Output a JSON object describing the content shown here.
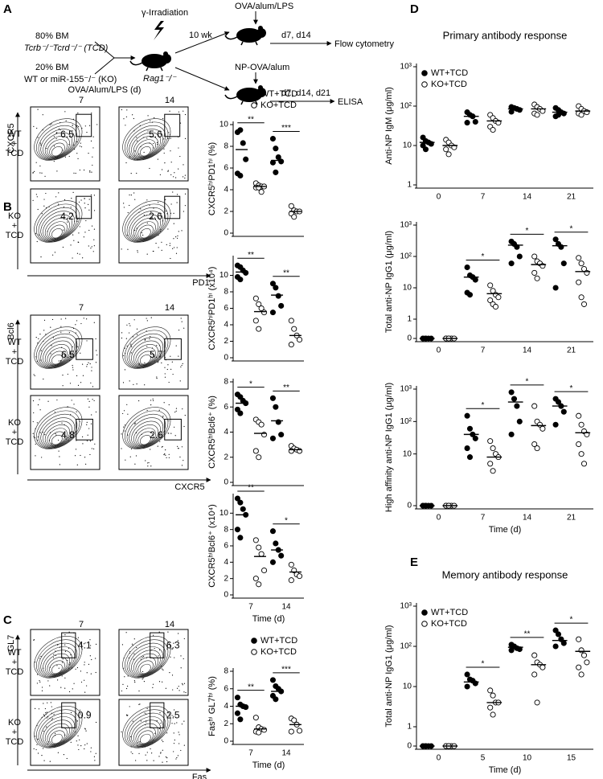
{
  "panel_labels": [
    "A",
    "B",
    "C",
    "D",
    "E"
  ],
  "schematic": {
    "bm_tcd_pct": "80% BM",
    "bm_tcd": "Tcrb⁻/⁻Tcrd⁻/⁻ (TCD)",
    "bm_test_pct": "20% BM",
    "bm_test": "WT or miR-155⁻/⁻ (KO)",
    "irradiation": "γ-Irradiation",
    "wait": "10 wk",
    "recipient": "Rag1⁻/⁻",
    "immunization_1": "OVA/alum/LPS",
    "days_1": "d7, d14",
    "readout_1": "Flow cytometry",
    "immunization_2": "NP-OVA/alum",
    "days_2": "d7, d14, d21",
    "readout_2": "ELISA"
  },
  "flow": {
    "title": "OVA/Alum/LPS (d)",
    "blocks": [
      {
        "days": [
          "7",
          "14"
        ],
        "y_axis": "CXCR5",
        "x_axis": "PD1",
        "rows": [
          {
            "label": [
              "WT",
              "+",
              "TCD"
            ],
            "gates": [
              6.5,
              5.6
            ]
          },
          {
            "label": [
              "KO",
              "+",
              "TCD"
            ],
            "gates": [
              4.2,
              2.6
            ]
          }
        ]
      },
      {
        "days": [
          "7",
          "14"
        ],
        "y_axis": "Bcl6",
        "x_axis": "CXCR5",
        "rows": [
          {
            "label": [
              "WT",
              "+",
              "TCD"
            ],
            "gates": [
              6.5,
              5.7
            ]
          },
          {
            "label": [
              "KO",
              "+",
              "TCD"
            ],
            "gates": [
              4.8,
              2.6
            ]
          }
        ]
      },
      {
        "days": [
          "7",
          "14"
        ],
        "y_axis": "GL7",
        "x_axis": "Fas",
        "rows": [
          {
            "label": [
              "WT",
              "+",
              "TCD"
            ],
            "gates": [
              4.1,
              6.3
            ]
          },
          {
            "label": [
              "KO",
              "+",
              "TCD"
            ],
            "gates": [
              0.9,
              2.5
            ]
          }
        ]
      }
    ]
  },
  "chart_data": [
    {
      "type": "dot",
      "ylabel": "CXCR5ʰⁱPD1ʰⁱ (%)",
      "categories": [
        null,
        null
      ],
      "ylim": [
        0,
        10
      ],
      "yticks": [
        0,
        2,
        4,
        6,
        8,
        10
      ],
      "legend": "upper right",
      "significance": [
        "**",
        "***"
      ],
      "series": [
        {
          "name": "WT+TCD",
          "color": "#000000",
          "marker": "filled",
          "values": [
            [
              9.3,
              9.5,
              8.3,
              6.8,
              5.5,
              5.3
            ],
            [
              8.7,
              7.8,
              7.0,
              6.6,
              6.5,
              5.6
            ]
          ],
          "means": [
            7.7,
            6.7
          ]
        },
        {
          "name": "KO+TCD",
          "color": "#000000",
          "marker": "open",
          "values": [
            [
              4.6,
              4.4,
              4.3,
              4.3,
              4.2,
              4.2,
              3.8
            ],
            [
              2.5,
              2.1,
              2.0,
              2.0,
              1.8,
              1.5
            ]
          ],
          "means": [
            4.3,
            2.0
          ]
        }
      ]
    },
    {
      "type": "dot",
      "ylabel": "CXCR5ʰⁱPD1ʰⁱ (x10⁴)",
      "categories": [
        null,
        null
      ],
      "ylim": [
        0,
        12
      ],
      "yticks": [
        0,
        2,
        4,
        6,
        8,
        10
      ],
      "significance": [
        "**",
        "**"
      ],
      "series": [
        {
          "color": "#000000",
          "marker": "filled",
          "values": [
            [
              11.2,
              11.0,
              10.6,
              10.3,
              9.8,
              9.5
            ],
            [
              9.0,
              8.5,
              7.5,
              6.3,
              5.5
            ]
          ],
          "means": [
            10.4,
            7.6
          ]
        },
        {
          "color": "#000000",
          "marker": "open",
          "values": [
            [
              7.2,
              6.5,
              6.0,
              5.5,
              4.5,
              3.5
            ],
            [
              4.5,
              3.5,
              2.7,
              2.2,
              1.6
            ]
          ],
          "means": [
            5.6,
            2.7
          ]
        }
      ]
    },
    {
      "type": "dot",
      "ylabel": "CXCR5ʰⁱBcl6⁺ (%)",
      "categories": [
        null,
        null
      ],
      "ylim": [
        0,
        8
      ],
      "yticks": [
        0,
        2,
        4,
        6,
        8
      ],
      "significance": [
        "*",
        "**"
      ],
      "series": [
        {
          "color": "#000000",
          "marker": "filled",
          "values": [
            [
              7.0,
              6.8,
              6.5,
              6.3,
              5.8,
              5.5
            ],
            [
              6.7,
              6.0,
              4.8,
              3.8,
              3.5
            ]
          ],
          "means": [
            6.3,
            4.9
          ]
        },
        {
          "color": "#000000",
          "marker": "open",
          "values": [
            [
              5.0,
              4.8,
              4.6,
              3.8,
              2.5,
              2.0
            ],
            [
              2.9,
              2.7,
              2.6,
              2.5,
              2.5
            ]
          ],
          "means": [
            3.9,
            2.6
          ]
        }
      ]
    },
    {
      "type": "dot",
      "ylabel": "CXCR5ʰⁱBcl6⁺ (x10⁴)",
      "xlabel": "Time (d)",
      "categories": [
        "7",
        "14"
      ],
      "ylim": [
        0,
        12
      ],
      "yticks": [
        0,
        2,
        4,
        6,
        8,
        10
      ],
      "significance": [
        "**",
        "*"
      ],
      "series": [
        {
          "color": "#000000",
          "marker": "filled",
          "values": [
            [
              11.8,
              11.3,
              10.5,
              9.8,
              8.0,
              7.0
            ],
            [
              7.8,
              6.3,
              5.5,
              4.8,
              4.0
            ]
          ],
          "means": [
            9.8,
            5.5
          ]
        },
        {
          "color": "#000000",
          "marker": "open",
          "values": [
            [
              6.7,
              5.8,
              5.0,
              3.0,
              2.0,
              1.3
            ],
            [
              3.7,
              3.0,
              2.5,
              2.3,
              1.8
            ]
          ],
          "means": [
            4.7,
            2.8
          ]
        }
      ]
    },
    {
      "type": "dot",
      "ylabel": "Fasʰⁱ GL7ʰⁱ (%)",
      "xlabel": "Time (d)",
      "categories": [
        "7",
        "14"
      ],
      "ylim": [
        0,
        8
      ],
      "yticks": [
        0,
        2,
        4,
        6,
        8
      ],
      "legend": "upper right",
      "significance": [
        "**",
        "***"
      ],
      "series": [
        {
          "name": "WT+TCD",
          "color": "#000000",
          "marker": "filled",
          "values": [
            [
              5.0,
              4.2,
              4.0,
              3.9,
              3.2,
              2.5
            ],
            [
              7.0,
              6.3,
              6.0,
              5.7,
              5.2,
              4.8
            ]
          ],
          "means": [
            4.0,
            5.7
          ]
        },
        {
          "name": "KO+TCD",
          "color": "#000000",
          "marker": "open",
          "values": [
            [
              2.7,
              1.6,
              1.4,
              1.3,
              1.1,
              1.0
            ],
            [
              2.6,
              2.4,
              1.9,
              1.2,
              1.1
            ]
          ],
          "means": [
            1.4,
            1.9
          ]
        }
      ]
    },
    {
      "type": "dot",
      "title": "Primary antibody response",
      "ylabel": "Anti-NP IgM (μg/ml)",
      "categories": [
        "0",
        "7",
        "14",
        "21"
      ],
      "log": true,
      "ylim": [
        1,
        1000
      ],
      "yticks": [
        1,
        10,
        {
          "value": 100,
          "label": "10²"
        },
        {
          "value": 1000,
          "label": "10³"
        }
      ],
      "legend": "upper left",
      "series": [
        {
          "name": "WT+TCD",
          "color": "#000000",
          "marker": "filled",
          "values": [
            [
              16,
              13,
              12,
              11,
              10,
              8
            ],
            [
              70,
              60,
              55,
              40,
              38
            ],
            [
              95,
              90,
              85,
              80,
              72
            ],
            [
              90,
              80,
              70,
              65,
              55,
              60
            ]
          ],
          "means": [
            12,
            55,
            85,
            70
          ]
        },
        {
          "name": "KO+TCD",
          "color": "#000000",
          "marker": "open",
          "values": [
            [
              14,
              12,
              10,
              9,
              8,
              6
            ],
            [
              60,
              50,
              42,
              38,
              30,
              25
            ],
            [
              110,
              95,
              85,
              75,
              65,
              60
            ],
            [
              100,
              85,
              75,
              70,
              65,
              60
            ]
          ],
          "means": [
            10,
            42,
            85,
            75
          ]
        }
      ]
    },
    {
      "type": "dot",
      "ylabel": "Total anti-NP IgG1 (μg/ml)",
      "categories": [
        "0",
        "7",
        "14",
        "21"
      ],
      "log": true,
      "ylim": [
        1,
        1000
      ],
      "yticks": [
        0,
        1,
        10,
        {
          "value": 100,
          "label": "10²"
        },
        {
          "value": 1000,
          "label": "10³"
        }
      ],
      "significance": [
        null,
        "*",
        "*",
        "*"
      ],
      "series": [
        {
          "color": "#000000",
          "marker": "filled",
          "values": [
            [
              0,
              0,
              0,
              0,
              0,
              0
            ],
            [
              45,
              25,
              22,
              18,
              7,
              6
            ],
            [
              300,
              250,
              200,
              100,
              60
            ],
            [
              350,
              250,
              200,
              60,
              10
            ]
          ],
          "means": [
            0,
            22,
            230,
            220
          ]
        },
        {
          "color": "#000000",
          "marker": "open",
          "values": [
            [
              0,
              0,
              0,
              0,
              0,
              0
            ],
            [
              12,
              8,
              6,
              5,
              4,
              3,
              2.5
            ],
            [
              100,
              70,
              60,
              50,
              30,
              20
            ],
            [
              90,
              60,
              40,
              30,
              15,
              5,
              3
            ]
          ],
          "means": [
            0,
            6.5,
            55,
            33
          ]
        }
      ]
    },
    {
      "type": "dot",
      "ylabel": "High affinity anti-NP IgG1 (μg/ml)",
      "xlabel": "Time (d)",
      "categories": [
        "0",
        "7",
        "14",
        "21"
      ],
      "log": true,
      "ylim": [
        1,
        1000
      ],
      "yticks": [
        0,
        10,
        {
          "value": 100,
          "label": "10²"
        },
        {
          "value": 1000,
          "label": "10³"
        }
      ],
      "significance": [
        null,
        "*",
        "*",
        "*"
      ],
      "series": [
        {
          "color": "#000000",
          "marker": "filled",
          "values": [
            [
              0,
              0,
              0,
              0,
              0,
              0
            ],
            [
              150,
              60,
              40,
              30,
              15,
              8
            ],
            [
              800,
              500,
              300,
              100,
              40
            ],
            [
              500,
              400,
              300,
              200,
              80
            ]
          ],
          "means": [
            0,
            40,
            400,
            300
          ]
        },
        {
          "color": "#000000",
          "marker": "open",
          "values": [
            [
              0,
              0,
              0,
              0,
              0,
              0
            ],
            [
              25,
              15,
              10,
              8,
              5,
              3
            ],
            [
              300,
              100,
              80,
              60,
              20,
              15
            ],
            [
              150,
              80,
              50,
              40,
              20,
              10,
              5
            ]
          ],
          "means": [
            0,
            8,
            75,
            45
          ]
        }
      ]
    },
    {
      "type": "dot",
      "title": "Memory antibody response",
      "ylabel": "Total anti-NP IgG1 (μg/ml)",
      "xlabel": "Time (d)",
      "categories": [
        "0",
        "5",
        "10",
        "15"
      ],
      "log": true,
      "ylim": [
        1,
        1000
      ],
      "yticks": [
        0,
        1,
        10,
        {
          "value": 100,
          "label": "10²"
        },
        {
          "value": 1000,
          "label": "10³"
        }
      ],
      "legend": "upper left",
      "significance": [
        null,
        "*",
        "**",
        "*"
      ],
      "series": [
        {
          "name": "WT+TCD",
          "color": "#000000",
          "marker": "filled",
          "values": [
            [
              0,
              0,
              0,
              0,
              0,
              0
            ],
            [
              20,
              15,
              14,
              12,
              10
            ],
            [
              110,
              100,
              90,
              85,
              80
            ],
            [
              250,
              200,
              150,
              120,
              100
            ]
          ],
          "means": [
            0,
            13,
            95,
            140
          ]
        },
        {
          "name": "KO+TCD",
          "color": "#000000",
          "marker": "open",
          "values": [
            [
              0,
              0,
              0,
              0,
              0,
              0
            ],
            [
              8,
              6,
              4,
              4,
              3,
              2
            ],
            [
              60,
              40,
              35,
              30,
              20,
              4
            ],
            [
              150,
              80,
              60,
              40,
              30,
              20
            ]
          ],
          "means": [
            0,
            4,
            35,
            75
          ]
        }
      ]
    }
  ]
}
